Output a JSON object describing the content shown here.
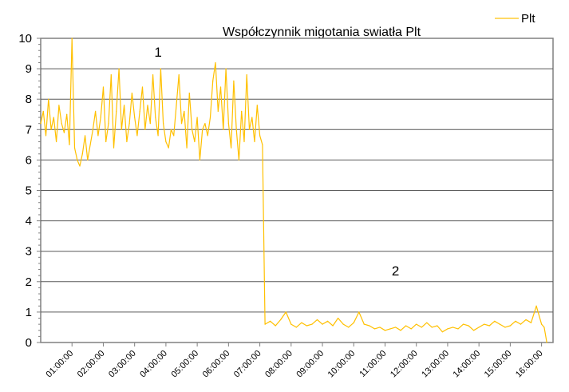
{
  "chart_data": {
    "type": "line",
    "title": "Współczynnik migotania swiatła Plt",
    "xlabel": "",
    "ylabel": "",
    "ylim": [
      0,
      10
    ],
    "xlim": [
      "00:00:00",
      "16:22:00"
    ],
    "yticks": [
      "0",
      "1",
      "2",
      "3",
      "4",
      "5",
      "6",
      "7",
      "8",
      "9",
      "10"
    ],
    "xticks": [
      "01:00:00",
      "02:00:00",
      "03:00:00",
      "04:00:00",
      "05:00:00",
      "06:00:00",
      "07:00:00",
      "08:00:00",
      "09:00:00",
      "10:00:00",
      "11:00:00",
      "12:00:00",
      "13:00:00",
      "14:00:00",
      "15:00:00",
      "16:00:00"
    ],
    "grid": "horizontal major",
    "legend": {
      "position": "top-right",
      "entries": [
        "Plt"
      ]
    },
    "colors": {
      "series": "#FFC000",
      "grid": "#808080",
      "axis": "#808080"
    },
    "annotations": [
      {
        "text": "1",
        "x": "03:45:00",
        "y": 9.4
      },
      {
        "text": "2",
        "x": "11:20:00",
        "y": 2.2
      }
    ],
    "series": [
      {
        "name": "Plt",
        "points": [
          [
            "00:00",
            7.2
          ],
          [
            "00:05",
            7.6
          ],
          [
            "00:10",
            6.8
          ],
          [
            "00:15",
            8.0
          ],
          [
            "00:20",
            7.0
          ],
          [
            "00:25",
            7.4
          ],
          [
            "00:30",
            6.6
          ],
          [
            "00:35",
            7.8
          ],
          [
            "00:40",
            7.2
          ],
          [
            "00:45",
            6.9
          ],
          [
            "00:50",
            7.5
          ],
          [
            "00:55",
            6.5
          ],
          [
            "01:00",
            10.0
          ],
          [
            "01:05",
            6.4
          ],
          [
            "01:10",
            6.0
          ],
          [
            "01:15",
            5.8
          ],
          [
            "01:20",
            6.2
          ],
          [
            "01:25",
            6.8
          ],
          [
            "01:30",
            6.0
          ],
          [
            "01:35",
            6.5
          ],
          [
            "01:40",
            7.0
          ],
          [
            "01:45",
            7.6
          ],
          [
            "01:50",
            6.8
          ],
          [
            "01:55",
            7.4
          ],
          [
            "02:00",
            8.4
          ],
          [
            "02:05",
            6.6
          ],
          [
            "02:10",
            7.2
          ],
          [
            "02:15",
            8.8
          ],
          [
            "02:20",
            6.4
          ],
          [
            "02:25",
            7.6
          ],
          [
            "02:30",
            9.0
          ],
          [
            "02:35",
            7.0
          ],
          [
            "02:40",
            7.8
          ],
          [
            "02:45",
            6.6
          ],
          [
            "02:50",
            7.2
          ],
          [
            "02:55",
            8.2
          ],
          [
            "03:00",
            7.4
          ],
          [
            "03:05",
            6.8
          ],
          [
            "03:10",
            7.6
          ],
          [
            "03:15",
            8.4
          ],
          [
            "03:20",
            7.0
          ],
          [
            "03:25",
            7.8
          ],
          [
            "03:30",
            7.2
          ],
          [
            "03:35",
            8.8
          ],
          [
            "03:40",
            7.4
          ],
          [
            "03:45",
            6.8
          ],
          [
            "03:50",
            9.0
          ],
          [
            "03:55",
            7.2
          ],
          [
            "04:00",
            6.6
          ],
          [
            "04:05",
            6.4
          ],
          [
            "04:10",
            7.0
          ],
          [
            "04:15",
            6.8
          ],
          [
            "04:20",
            7.8
          ],
          [
            "04:25",
            8.8
          ],
          [
            "04:30",
            7.2
          ],
          [
            "04:35",
            7.6
          ],
          [
            "04:40",
            6.4
          ],
          [
            "04:45",
            8.2
          ],
          [
            "04:50",
            7.0
          ],
          [
            "04:55",
            6.6
          ],
          [
            "05:00",
            7.4
          ],
          [
            "05:05",
            6.0
          ],
          [
            "05:10",
            7.0
          ],
          [
            "05:15",
            7.2
          ],
          [
            "05:20",
            6.8
          ],
          [
            "05:25",
            7.4
          ],
          [
            "05:30",
            8.6
          ],
          [
            "05:35",
            9.2
          ],
          [
            "05:40",
            7.6
          ],
          [
            "05:45",
            8.4
          ],
          [
            "05:50",
            7.0
          ],
          [
            "05:55",
            9.0
          ],
          [
            "06:00",
            7.2
          ],
          [
            "06:05",
            6.4
          ],
          [
            "06:10",
            8.6
          ],
          [
            "06:15",
            7.0
          ],
          [
            "06:20",
            6.0
          ],
          [
            "06:25",
            7.6
          ],
          [
            "06:30",
            6.6
          ],
          [
            "06:35",
            8.8
          ],
          [
            "06:40",
            7.0
          ],
          [
            "06:45",
            7.4
          ],
          [
            "06:50",
            6.6
          ],
          [
            "06:55",
            7.8
          ],
          [
            "07:00",
            6.8
          ],
          [
            "07:05",
            6.5
          ],
          [
            "07:10",
            0.6
          ],
          [
            "07:20",
            0.7
          ],
          [
            "07:30",
            0.55
          ],
          [
            "07:40",
            0.75
          ],
          [
            "07:50",
            1.0
          ],
          [
            "08:00",
            0.6
          ],
          [
            "08:10",
            0.5
          ],
          [
            "08:20",
            0.65
          ],
          [
            "08:30",
            0.55
          ],
          [
            "08:40",
            0.6
          ],
          [
            "08:50",
            0.75
          ],
          [
            "09:00",
            0.6
          ],
          [
            "09:10",
            0.7
          ],
          [
            "09:20",
            0.55
          ],
          [
            "09:30",
            0.8
          ],
          [
            "09:40",
            0.6
          ],
          [
            "09:50",
            0.5
          ],
          [
            "10:00",
            0.65
          ],
          [
            "10:10",
            1.0
          ],
          [
            "10:20",
            0.6
          ],
          [
            "10:30",
            0.55
          ],
          [
            "10:40",
            0.45
          ],
          [
            "10:50",
            0.5
          ],
          [
            "11:00",
            0.4
          ],
          [
            "11:10",
            0.45
          ],
          [
            "11:20",
            0.5
          ],
          [
            "11:30",
            0.4
          ],
          [
            "11:40",
            0.55
          ],
          [
            "11:50",
            0.45
          ],
          [
            "12:00",
            0.6
          ],
          [
            "12:10",
            0.5
          ],
          [
            "12:20",
            0.65
          ],
          [
            "12:30",
            0.5
          ],
          [
            "12:40",
            0.55
          ],
          [
            "12:50",
            0.35
          ],
          [
            "13:00",
            0.45
          ],
          [
            "13:10",
            0.5
          ],
          [
            "13:20",
            0.45
          ],
          [
            "13:30",
            0.6
          ],
          [
            "13:40",
            0.55
          ],
          [
            "13:50",
            0.4
          ],
          [
            "14:00",
            0.5
          ],
          [
            "14:10",
            0.6
          ],
          [
            "14:20",
            0.55
          ],
          [
            "14:30",
            0.7
          ],
          [
            "14:40",
            0.6
          ],
          [
            "14:50",
            0.5
          ],
          [
            "15:00",
            0.55
          ],
          [
            "15:10",
            0.7
          ],
          [
            "15:20",
            0.6
          ],
          [
            "15:30",
            0.75
          ],
          [
            "15:40",
            0.65
          ],
          [
            "15:50",
            1.2
          ],
          [
            "16:00",
            0.6
          ],
          [
            "16:05",
            0.5
          ],
          [
            "16:10",
            0.0
          ]
        ]
      }
    ]
  }
}
